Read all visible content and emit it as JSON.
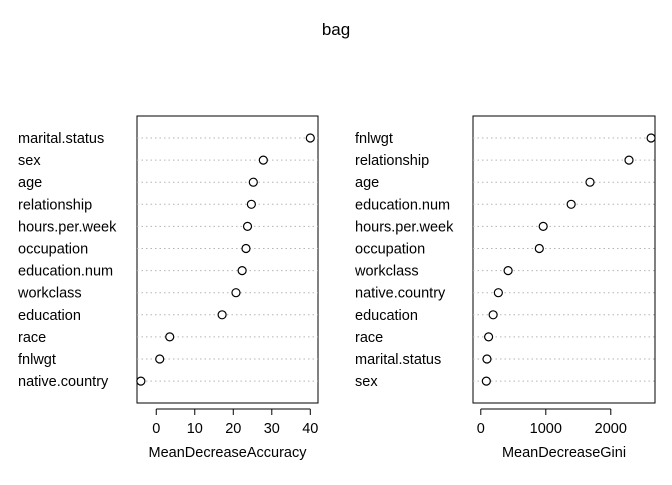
{
  "title": "bag",
  "chart_data": [
    {
      "type": "dotplot",
      "xlabel": "MeanDecreaseAccuracy",
      "xlim": [
        -5,
        42
      ],
      "xticks": [
        0,
        10,
        20,
        30,
        40
      ],
      "grid": "dotted horizontal",
      "categories": [
        "marital.status",
        "sex",
        "age",
        "relationship",
        "hours.per.week",
        "occupation",
        "education.num",
        "workclass",
        "education",
        "race",
        "fnlwgt",
        "native.country"
      ],
      "values": [
        40.0,
        27.8,
        25.2,
        24.7,
        23.7,
        23.3,
        22.3,
        20.7,
        17.1,
        3.5,
        0.9,
        -4.0
      ]
    },
    {
      "type": "dotplot",
      "xlabel": "MeanDecreaseGini",
      "xlim": [
        -120,
        2680
      ],
      "xticks": [
        0,
        1000,
        2000
      ],
      "grid": "dotted horizontal",
      "categories": [
        "fnlwgt",
        "relationship",
        "age",
        "education.num",
        "hours.per.week",
        "occupation",
        "workclass",
        "native.country",
        "education",
        "race",
        "marital.status",
        "sex"
      ],
      "values": [
        2620,
        2280,
        1680,
        1390,
        960,
        900,
        420,
        270,
        190,
        120,
        95,
        85
      ]
    }
  ]
}
